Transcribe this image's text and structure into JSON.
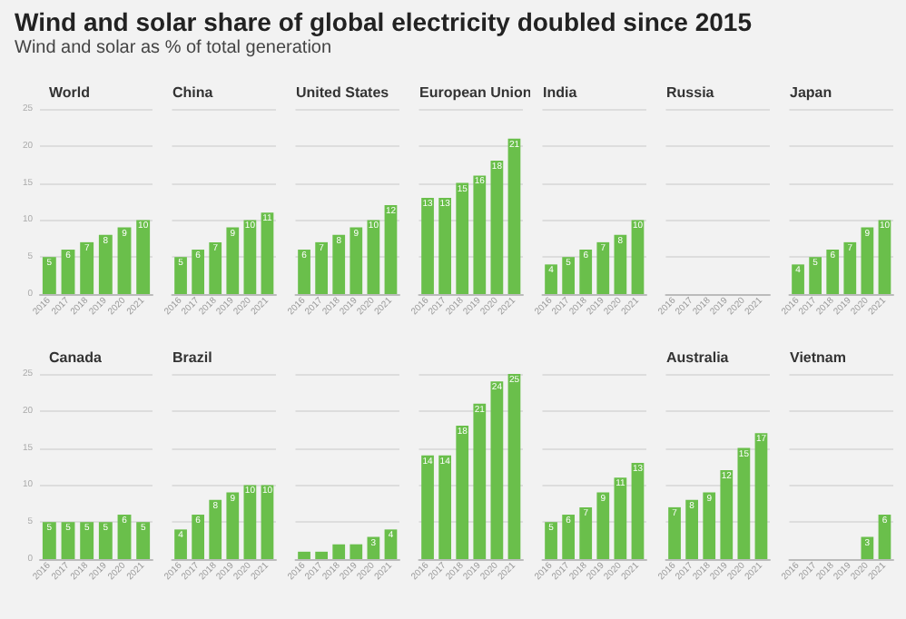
{
  "chart_data": [
    {
      "type": "other",
      "title": "Wind and solar share of global electricity doubled since 2015",
      "subtitle": "Wind and solar as % of total generation"
    },
    {
      "type": "bar",
      "title": "World",
      "categories": [
        "2016",
        "2017",
        "2018",
        "2019",
        "2020",
        "2021"
      ],
      "values": [
        5,
        6,
        7,
        8,
        9,
        10
      ],
      "color": "#6abf4b",
      "ylim": [
        0,
        25
      ],
      "yticks": [
        0,
        5,
        10,
        15,
        20,
        25
      ],
      "grid": "y",
      "data_labels": true
    },
    {
      "type": "bar",
      "title": "China",
      "categories": [
        "2016",
        "2017",
        "2018",
        "2019",
        "2020",
        "2021"
      ],
      "values": [
        5,
        6,
        7,
        9,
        10,
        11
      ],
      "color": "#6abf4b",
      "ylim": [
        0,
        25
      ],
      "yticks": [
        0,
        5,
        10,
        15,
        20,
        25
      ],
      "grid": "y",
      "tick_labels": "x",
      "data_labels": true
    },
    {
      "type": "bar",
      "title": "United States",
      "categories": [
        "2016",
        "2017",
        "2018",
        "2019",
        "2020",
        "2021"
      ],
      "values": [
        6,
        7,
        8,
        9,
        10,
        12
      ],
      "color": "#6abf4b",
      "ylim": [
        0,
        25
      ],
      "yticks": [
        0,
        5,
        10,
        15,
        20,
        25
      ],
      "grid": "y",
      "tick_labels": "x",
      "data_labels": true
    },
    {
      "type": "bar",
      "title": "European Union",
      "categories": [
        "2016",
        "2017",
        "2018",
        "2019",
        "2020",
        "2021"
      ],
      "values": [
        13,
        13,
        15,
        16,
        18,
        21
      ],
      "color": "#6abf4b",
      "ylim": [
        0,
        25
      ],
      "yticks": [
        0,
        5,
        10,
        15,
        20,
        25
      ],
      "grid": "y",
      "tick_labels": "x",
      "data_labels": true
    },
    {
      "type": "bar",
      "title": "India",
      "categories": [
        "2016",
        "2017",
        "2018",
        "2019",
        "2020",
        "2021"
      ],
      "values": [
        4,
        5,
        6,
        7,
        8,
        10
      ],
      "color": "#6abf4b",
      "ylim": [
        0,
        25
      ],
      "yticks": [
        0,
        5,
        10,
        15,
        20,
        25
      ],
      "grid": "y",
      "tick_labels": "x",
      "data_labels": true
    },
    {
      "type": "bar",
      "title": "Russia",
      "categories": [
        "2016",
        "2017",
        "2018",
        "2019",
        "2020",
        "2021"
      ],
      "values": [
        0,
        0,
        0,
        0,
        0,
        0
      ],
      "color": "#6abf4b",
      "ylim": [
        0,
        25
      ],
      "yticks": [
        0,
        5,
        10,
        15,
        20,
        25
      ],
      "grid": "y",
      "tick_labels": "x"
    },
    {
      "type": "bar",
      "title": "Japan",
      "categories": [
        "2016",
        "2017",
        "2018",
        "2019",
        "2020",
        "2021"
      ],
      "values": [
        4,
        5,
        6,
        7,
        9,
        10
      ],
      "color": "#6abf4b",
      "ylim": [
        0,
        25
      ],
      "yticks": [
        0,
        5,
        10,
        15,
        20,
        25
      ],
      "grid": "y",
      "tick_labels": "x",
      "data_labels": true
    },
    {
      "type": "bar",
      "title": "Canada",
      "categories": [
        "2016",
        "2017",
        "2018",
        "2019",
        "2020",
        "2021"
      ],
      "values": [
        5,
        5,
        5,
        5,
        6,
        5
      ],
      "color": "#6abf4b",
      "ylim": [
        0,
        25
      ],
      "yticks": [
        0,
        5,
        10,
        15,
        20,
        25
      ],
      "grid": "y",
      "data_labels": true
    },
    {
      "type": "bar",
      "title": "Brazil",
      "categories": [
        "2016",
        "2017",
        "2018",
        "2019",
        "2020",
        "2021"
      ],
      "values": [
        4,
        6,
        8,
        9,
        10,
        10
      ],
      "color": "#6abf4b",
      "ylim": [
        0,
        25
      ],
      "yticks": [
        0,
        5,
        10,
        15,
        20,
        25
      ],
      "grid": "y",
      "tick_labels": "x",
      "data_labels": true
    },
    {
      "type": "bar",
      "categories": [
        "2016",
        "2017",
        "2018",
        "2019",
        "2020",
        "2021"
      ],
      "values": [
        1,
        1,
        2,
        2,
        3,
        4
      ],
      "value_labels": [
        null,
        null,
        null,
        null,
        "3",
        "4"
      ],
      "color": "#6abf4b",
      "ylim": [
        0,
        25
      ],
      "yticks": [
        0,
        5,
        10,
        15,
        20,
        25
      ],
      "grid": "y",
      "tick_labels": "x"
    },
    {
      "type": "bar",
      "categories": [
        "2016",
        "2017",
        "2018",
        "2019",
        "2020",
        "2021"
      ],
      "values": [
        14,
        14,
        18,
        21,
        24,
        25
      ],
      "color": "#6abf4b",
      "ylim": [
        0,
        25
      ],
      "yticks": [
        0,
        5,
        10,
        15,
        20,
        25
      ],
      "grid": "y",
      "tick_labels": "x",
      "data_labels": true
    },
    {
      "type": "bar",
      "categories": [
        "2016",
        "2017",
        "2018",
        "2019",
        "2020",
        "2021"
      ],
      "values": [
        5,
        6,
        7,
        9,
        11,
        13
      ],
      "color": "#6abf4b",
      "ylim": [
        0,
        25
      ],
      "yticks": [
        0,
        5,
        10,
        15,
        20,
        25
      ],
      "grid": "y",
      "tick_labels": "x",
      "data_labels": true
    },
    {
      "type": "bar",
      "title": "Australia",
      "categories": [
        "2016",
        "2017",
        "2018",
        "2019",
        "2020",
        "2021"
      ],
      "values": [
        7,
        8,
        9,
        12,
        15,
        17
      ],
      "color": "#6abf4b",
      "ylim": [
        0,
        25
      ],
      "yticks": [
        0,
        5,
        10,
        15,
        20,
        25
      ],
      "grid": "y",
      "tick_labels": "x",
      "data_labels": true
    },
    {
      "type": "bar",
      "title": "Vietnam",
      "categories": [
        "2016",
        "2017",
        "2018",
        "2019",
        "2020",
        "2021"
      ],
      "values": [
        0,
        0,
        0,
        0,
        3,
        6
      ],
      "value_labels": [
        null,
        null,
        null,
        null,
        "3",
        "6"
      ],
      "color": "#6abf4b",
      "ylim": [
        0,
        25
      ],
      "yticks": [
        0,
        5,
        10,
        15,
        20,
        25
      ],
      "grid": "y",
      "tick_labels": "x"
    }
  ]
}
